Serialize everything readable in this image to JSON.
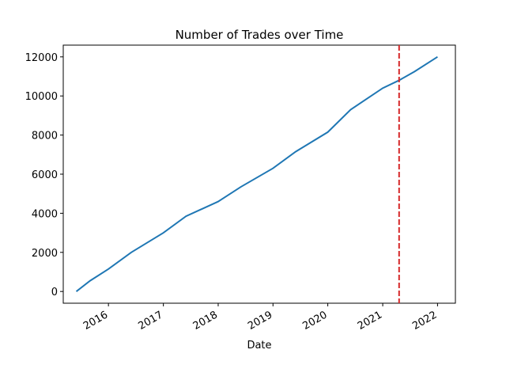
{
  "chart_data": {
    "type": "line",
    "title": "Number of Trades over Time",
    "xlabel": "Date",
    "ylabel": "",
    "x_ticks": [
      "2016",
      "2017",
      "2018",
      "2019",
      "2020",
      "2021",
      "2022"
    ],
    "y_ticks": [
      "0",
      "2000",
      "4000",
      "6000",
      "8000",
      "10000",
      "12000"
    ],
    "xlim": [
      "2015-03-06",
      "2022-04-30"
    ],
    "ylim": [
      -600,
      12600
    ],
    "grid": false,
    "series": [
      {
        "color": "#1f77b4",
        "x": [
          "2015-06-01",
          "2015-09-01",
          "2016-01-01",
          "2016-06-01",
          "2017-01-01",
          "2017-06-01",
          "2018-01-01",
          "2018-06-01",
          "2019-01-01",
          "2019-06-01",
          "2020-01-01",
          "2020-06-01",
          "2021-01-01",
          "2021-04-20",
          "2021-08-01",
          "2022-01-01"
        ],
        "y": [
          0,
          550,
          1150,
          2000,
          3000,
          3850,
          4600,
          5350,
          6300,
          7150,
          8150,
          9300,
          10400,
          10800,
          11250,
          12000
        ]
      }
    ],
    "vline": {
      "x": "2021-04-20",
      "color": "#d62728",
      "style": "dashed"
    }
  }
}
